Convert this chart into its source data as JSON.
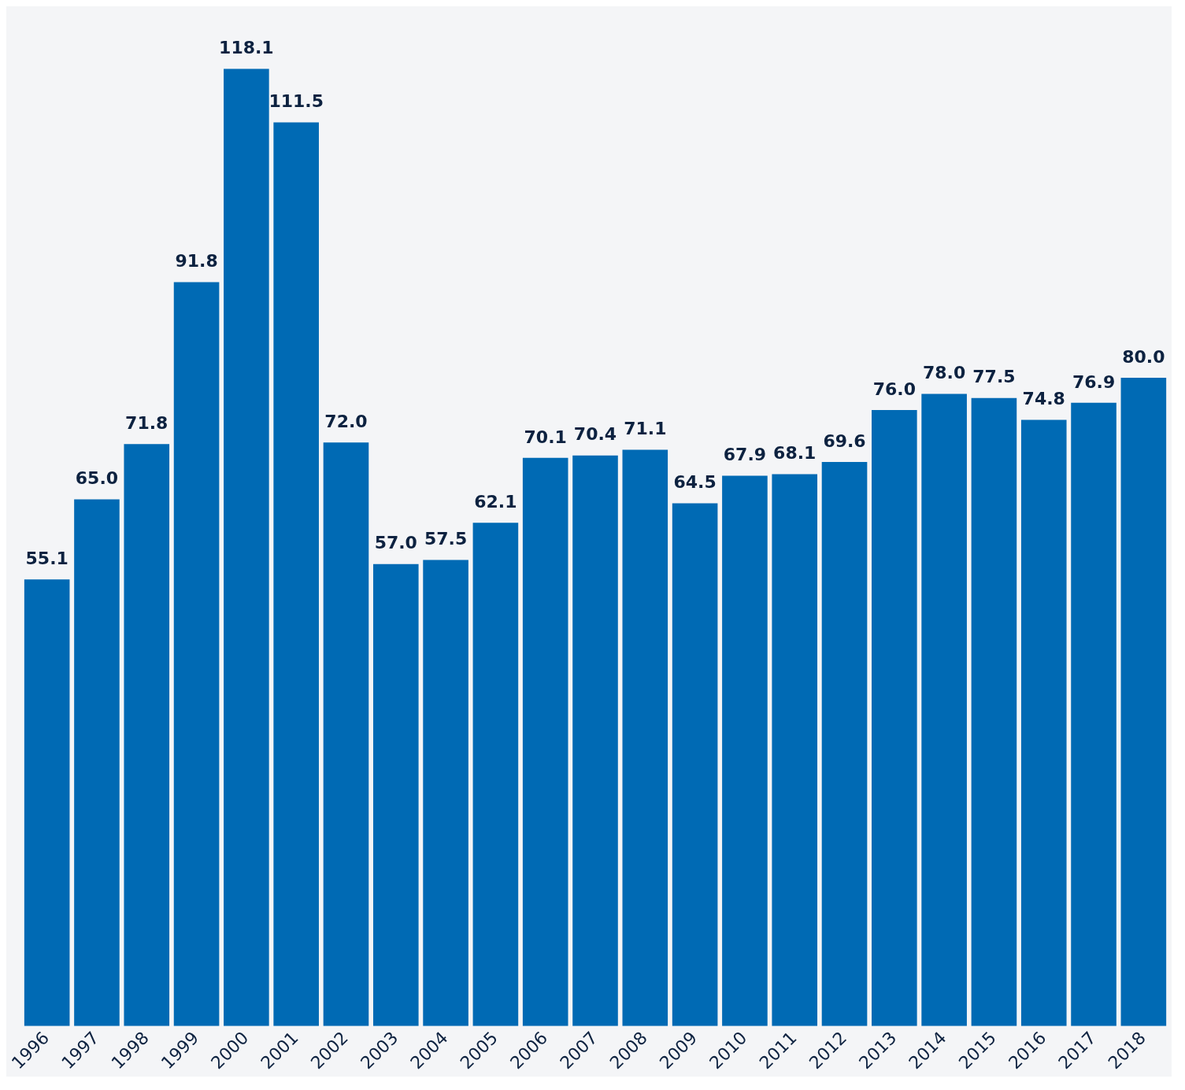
{
  "chart_data": {
    "type": "bar",
    "categories": [
      "1996",
      "1997",
      "1998",
      "1999",
      "2000",
      "2001",
      "2002",
      "2003",
      "2004",
      "2005",
      "2006",
      "2007",
      "2008",
      "2009",
      "2010",
      "2011",
      "2012",
      "2013",
      "2014",
      "2015",
      "2016",
      "2017",
      "2018"
    ],
    "values": [
      55.1,
      65.0,
      71.8,
      91.8,
      118.1,
      111.5,
      72.0,
      57.0,
      57.5,
      62.1,
      70.1,
      70.4,
      71.1,
      64.5,
      67.9,
      68.1,
      69.6,
      76.0,
      78.0,
      77.5,
      74.8,
      76.9,
      80.0
    ],
    "value_labels": [
      "55.1",
      "65.0",
      "71.8",
      "91.8",
      "118.1",
      "111.5",
      "72.0",
      "57.0",
      "57.5",
      "62.1",
      "70.1",
      "70.4",
      "71.1",
      "64.5",
      "67.9",
      "68.1",
      "69.6",
      "76.0",
      "78.0",
      "77.5",
      "74.8",
      "76.9",
      "80.0"
    ],
    "color": "#006ab4",
    "grid": false,
    "legend": false
  }
}
